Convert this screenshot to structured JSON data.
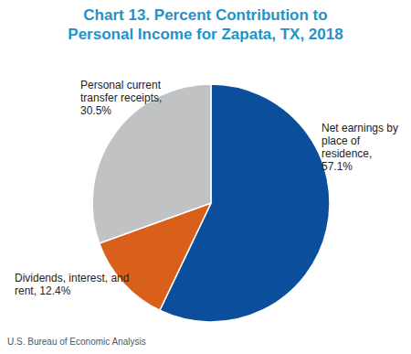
{
  "chart_data": {
    "type": "pie",
    "title": "Chart 13. Percent Contribution to Personal Income for Zapata, TX, 2018",
    "categories": [
      "Net earnings by place of residence",
      "Dividends, interest, and rent",
      "Personal current transfer receipts"
    ],
    "values": [
      57.1,
      12.4,
      30.5
    ],
    "value_labels": [
      "57.1%",
      "12.4%",
      "30.5%"
    ],
    "colors": [
      "#0b4f9c",
      "#d9601a",
      "#c0c2c3"
    ],
    "data_labels": true,
    "source": "U.S. Bureau of Economic Analysis"
  }
}
